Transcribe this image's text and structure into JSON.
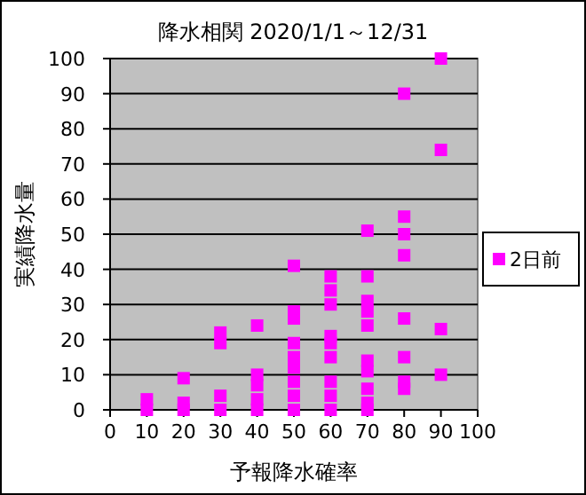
{
  "chart_data": {
    "type": "scatter",
    "title": "降水相関 2020/1/1～12/31",
    "xlabel": "予報降水確率",
    "ylabel": "実績降水量",
    "xlim": [
      0,
      100
    ],
    "ylim": [
      0,
      100
    ],
    "xticks": [
      0,
      10,
      20,
      30,
      40,
      50,
      60,
      70,
      80,
      90,
      100
    ],
    "yticks": [
      0,
      10,
      20,
      30,
      40,
      50,
      60,
      70,
      80,
      90,
      100
    ],
    "grid": "y",
    "legend": "right",
    "marker": "square",
    "series": [
      {
        "name": "2日前",
        "color": "#ff00ff",
        "x": [
          10,
          10,
          20,
          20,
          20,
          30,
          30,
          30,
          30,
          40,
          40,
          40,
          40,
          40,
          50,
          50,
          50,
          50,
          50,
          50,
          50,
          50,
          50,
          60,
          60,
          60,
          60,
          60,
          60,
          60,
          60,
          60,
          70,
          70,
          70,
          70,
          70,
          70,
          70,
          70,
          70,
          70,
          80,
          80,
          80,
          80,
          80,
          80,
          80,
          80,
          90,
          90,
          90,
          90
        ],
        "values": [
          0,
          3,
          0,
          2,
          9,
          0,
          4,
          19,
          22,
          0,
          3,
          7,
          10,
          24,
          0,
          4,
          8,
          12,
          15,
          19,
          26,
          28,
          41,
          0,
          4,
          8,
          15,
          19,
          21,
          30,
          34,
          38,
          0,
          2,
          6,
          11,
          14,
          24,
          28,
          31,
          38,
          51,
          6,
          8,
          15,
          26,
          44,
          50,
          55,
          90,
          10,
          23,
          74,
          100
        ]
      }
    ]
  }
}
